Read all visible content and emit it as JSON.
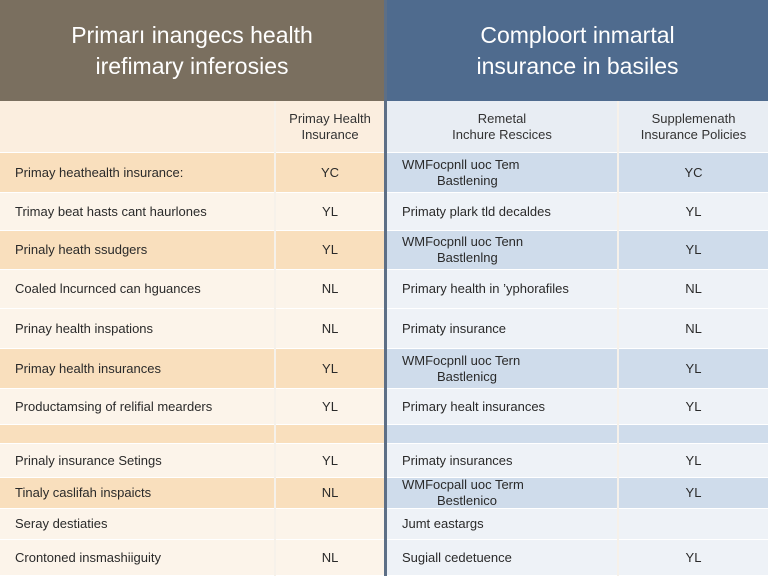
{
  "header": {
    "left_line1": "Primarı inangecs health",
    "left_line2": "irefimary inferosies",
    "right_line1": "Comploort inmartal",
    "right_line2": "insurance in basiles"
  },
  "columns": {
    "col2_line1": "Primay Health",
    "col2_line2": "Insurance",
    "col3_line1": "Remetal",
    "col3_line2": "Inchure Rescices",
    "col4_line1": "Supplemenath",
    "col4_line2": "Insurance Policies"
  },
  "rows": [
    {
      "a": "Primay heathealth insurance:",
      "b": "YC",
      "c1": "WMFocpnll uoc Tem",
      "c2": "Bastlening",
      "d": "YC"
    },
    {
      "a": "Trimay beat hasts cant haurlones",
      "b": "YL",
      "c1": "Primaty plark tld decaldes",
      "c2": "",
      "d": "YL"
    },
    {
      "a": "Prinaly heath ssudgers",
      "b": "YL",
      "c1": "WMFocpnll uoc Tenn",
      "c2": "Bastlenlng",
      "d": "YL"
    },
    {
      "a": "Coaled lncurnced can hguances",
      "b": "NL",
      "c1": "Primary health in ’yphorafiles",
      "c2": "",
      "d": "NL"
    },
    {
      "a": "Prinay health inspations",
      "b": "NL",
      "c1": "Primaty insurance",
      "c2": "",
      "d": "NL"
    },
    {
      "a": "Primay health insurances",
      "b": "YL",
      "c1": "WMFocpnll uoc Tern",
      "c2": "Bastlenicg",
      "d": "YL"
    },
    {
      "a": "Productamsing of relifial mearders",
      "b": "YL",
      "c1": "Primary healt insurances",
      "c2": "",
      "d": "YL"
    },
    {
      "a": "",
      "b": "",
      "c1": "",
      "c2": "",
      "d": ""
    },
    {
      "a": "Prinaly insurance Setings",
      "b": "YL",
      "c1": "Primaty insurances",
      "c2": "",
      "d": "YL"
    },
    {
      "a": "Tinaly caslifah inspaicts",
      "b": "NL",
      "c1": "WMFocpall uoc Term",
      "c2": "Bestlenico",
      "d": "YL"
    },
    {
      "a": "Seray destiaties",
      "b": "",
      "c1": "Jumt eastargs",
      "c2": "",
      "d": ""
    },
    {
      "a": "Crontoned insmashiiguity",
      "b": "NL",
      "c1": "Sugiall cedetuence",
      "c2": "",
      "d": "YL"
    }
  ]
}
